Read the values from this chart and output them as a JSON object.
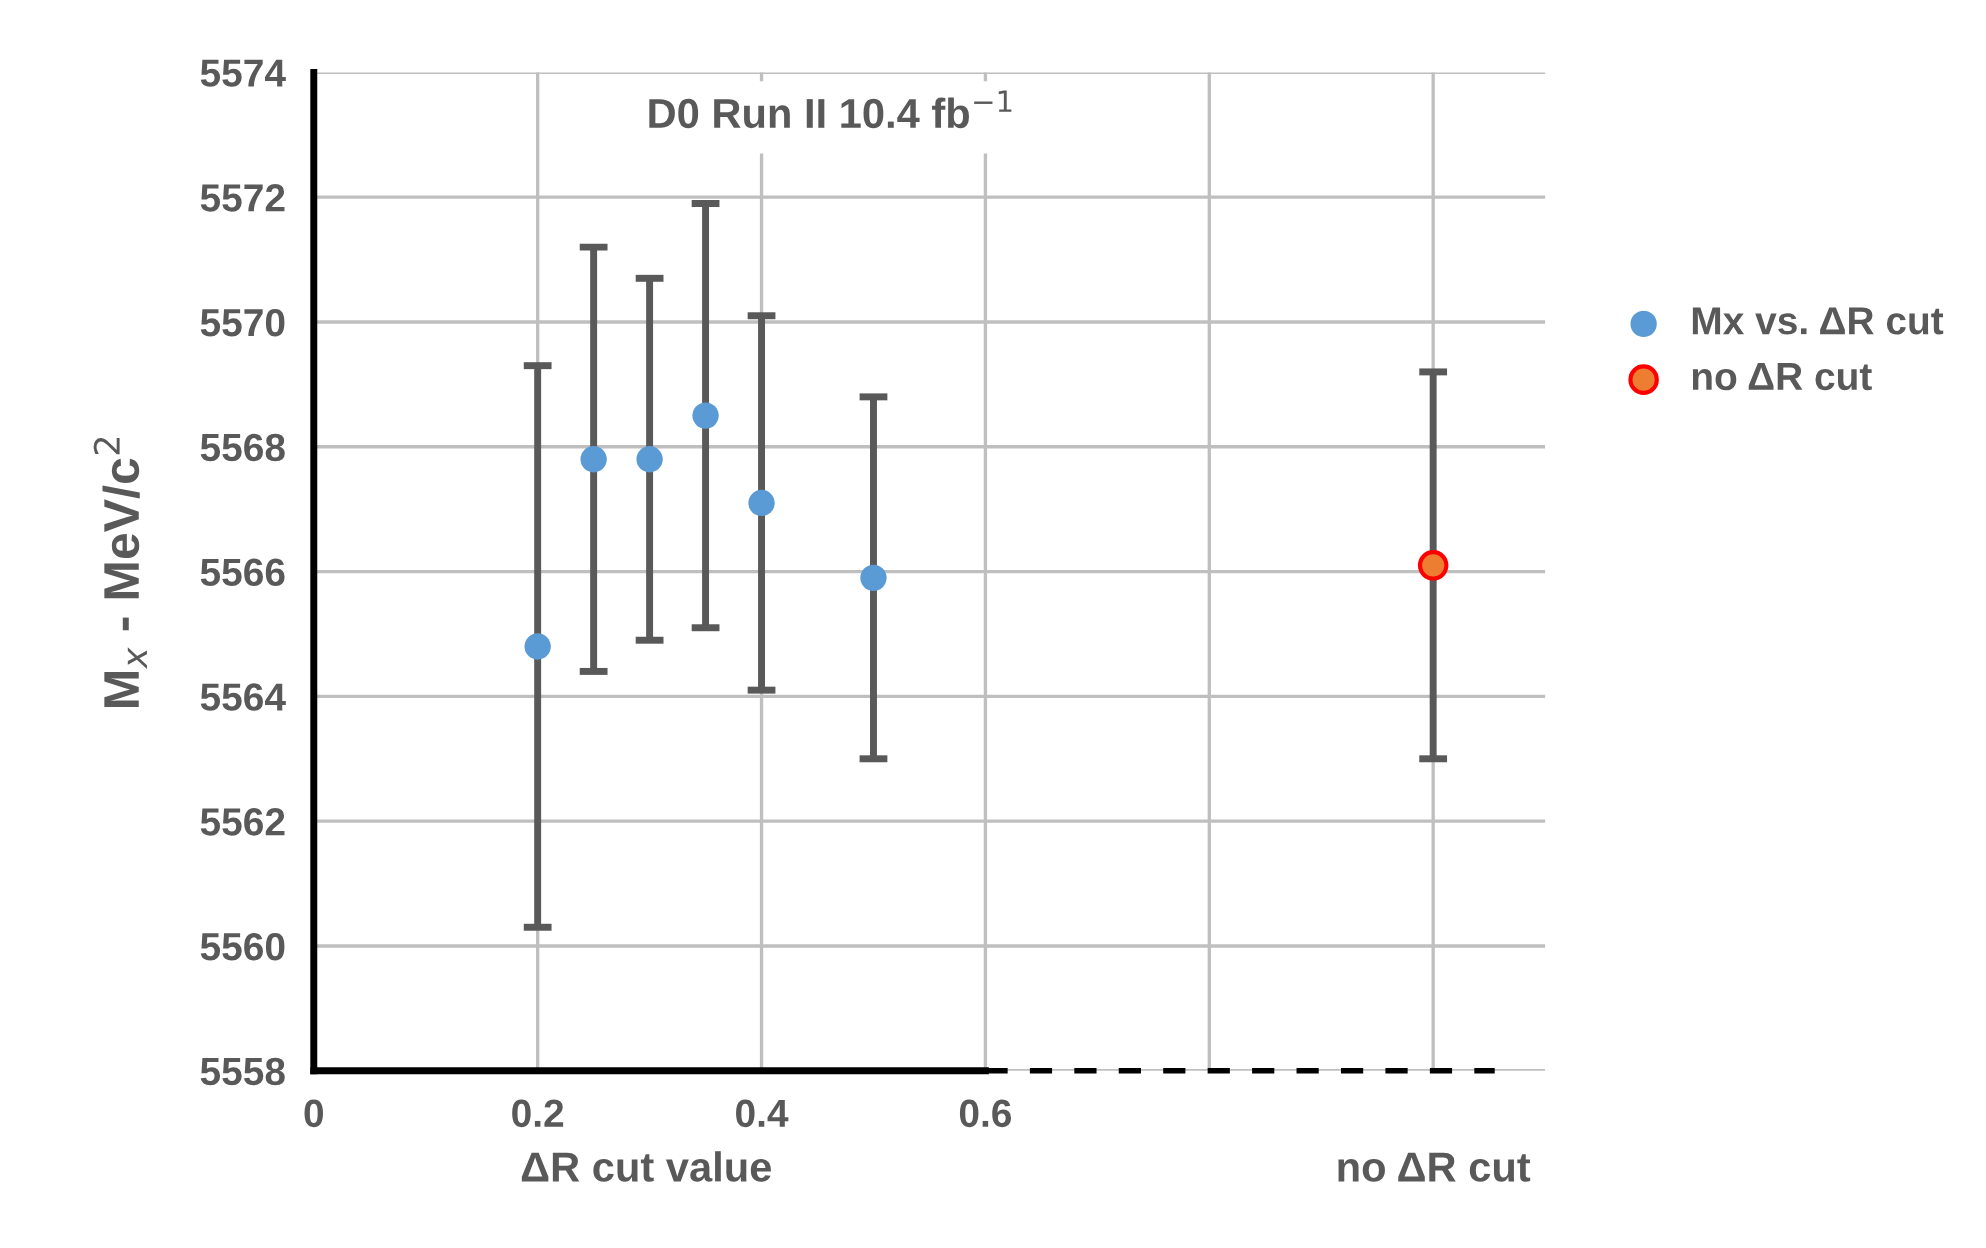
{
  "chart_data": {
    "type": "scatter",
    "title": "D0 Run II 10.4 fb$^{−1}$",
    "xlabel": "ΔR cut value",
    "ylabel": "M$_{x}$ - MeV/c$^{2}$",
    "xlim": [
      0,
      1.1
    ],
    "xticks": [
      0,
      0.2,
      0.4,
      0.6,
      {
        "value": 0.8,
        "label": null
      },
      {
        "value": 1.0,
        "label": null
      }
    ],
    "annotations": [
      "no ΔR cut"
    ],
    "ylim": [
      5558,
      5574
    ],
    "yticks": [
      5558,
      5560,
      5562,
      5564,
      5566,
      5568,
      5570,
      5572,
      5574
    ],
    "grid": true,
    "legend": "right",
    "marker": "circle",
    "series": [
      {
        "name": "Mx vs. ΔR cut",
        "color": "#5b9bd5",
        "x": [
          0.2,
          0.25,
          0.3,
          0.35,
          0.4,
          0.5
        ],
        "values": [
          5564.8,
          5567.8,
          5567.8,
          5568.5,
          5567.1,
          5565.9
        ],
        "errors": [
          4.5,
          3.4,
          2.9,
          3.4,
          3.0,
          2.9
        ]
      },
      {
        "name": "no ΔR cut",
        "color": "#ed7d31",
        "x": [
          1.0
        ],
        "values": [
          5566.1
        ],
        "errors": [
          3.1
        ]
      }
    ]
  }
}
